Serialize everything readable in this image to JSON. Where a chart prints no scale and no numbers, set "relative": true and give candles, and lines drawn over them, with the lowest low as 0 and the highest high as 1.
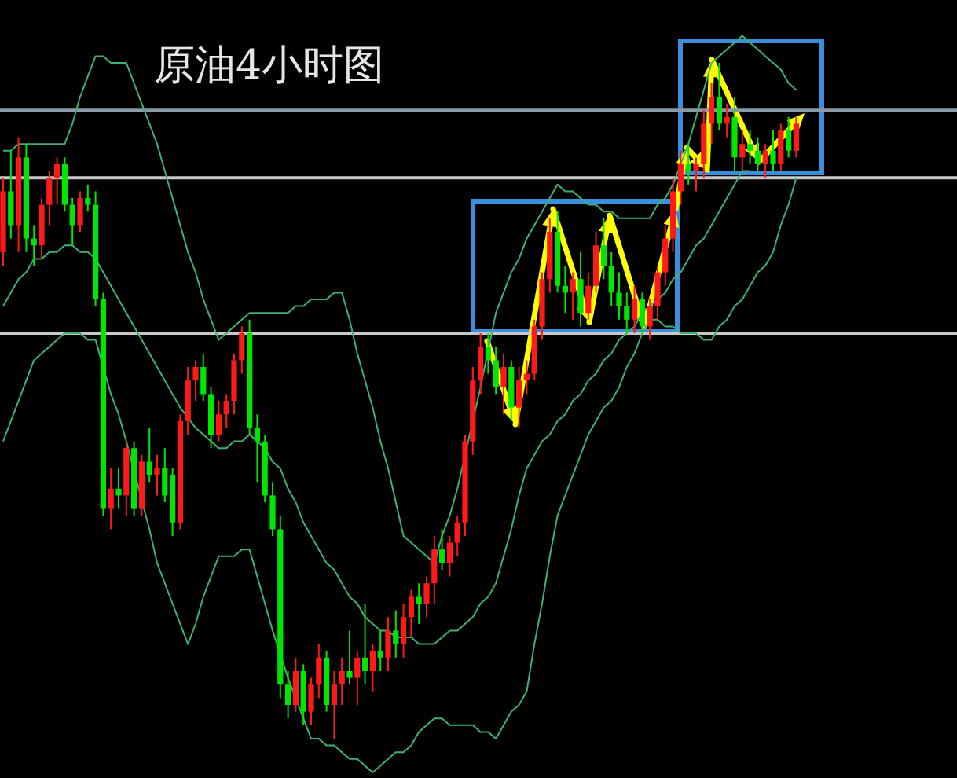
{
  "chart_data": {
    "type": "candlestick",
    "title": "原油4小时图",
    "relative": true,
    "categories": [
      null,
      null,
      null,
      null,
      null,
      null,
      null,
      null,
      null,
      null,
      null,
      null,
      null,
      null,
      null,
      null,
      null,
      null,
      null,
      null,
      null,
      null,
      null,
      null,
      null,
      null,
      null,
      null,
      null,
      null,
      null,
      null,
      null,
      null,
      null,
      null,
      null,
      null,
      null,
      null,
      null,
      null,
      null,
      null,
      null,
      null,
      null,
      null,
      null,
      null,
      null,
      null,
      null,
      null,
      null,
      null,
      null,
      null,
      null,
      null,
      null,
      null,
      null,
      null,
      null,
      null,
      null,
      null,
      null,
      null,
      null,
      null,
      null,
      null,
      null,
      null,
      null,
      null,
      null,
      null,
      null,
      null,
      null,
      null,
      null,
      null,
      null,
      null,
      null,
      null,
      null,
      null,
      null,
      null,
      null,
      null,
      null,
      null,
      null,
      null,
      null,
      null,
      null,
      null
    ],
    "ohlc": [
      [
        0.72,
        0.83,
        0.7,
        0.81
      ],
      [
        0.81,
        0.87,
        0.74,
        0.76
      ],
      [
        0.76,
        0.89,
        0.72,
        0.86
      ],
      [
        0.86,
        0.88,
        0.72,
        0.74
      ],
      [
        0.74,
        0.76,
        0.7,
        0.73
      ],
      [
        0.73,
        0.8,
        0.71,
        0.79
      ],
      [
        0.79,
        0.84,
        0.76,
        0.83
      ],
      [
        0.83,
        0.86,
        0.79,
        0.85
      ],
      [
        0.85,
        0.86,
        0.78,
        0.79
      ],
      [
        0.79,
        0.8,
        0.73,
        0.76
      ],
      [
        0.76,
        0.81,
        0.75,
        0.8
      ],
      [
        0.8,
        0.82,
        0.78,
        0.79
      ],
      [
        0.79,
        0.81,
        0.64,
        0.65
      ],
      [
        0.65,
        0.66,
        0.33,
        0.34
      ],
      [
        0.34,
        0.4,
        0.31,
        0.37
      ],
      [
        0.37,
        0.4,
        0.34,
        0.36
      ],
      [
        0.36,
        0.44,
        0.33,
        0.43
      ],
      [
        0.43,
        0.44,
        0.33,
        0.34
      ],
      [
        0.34,
        0.42,
        0.33,
        0.41
      ],
      [
        0.41,
        0.46,
        0.38,
        0.39
      ],
      [
        0.39,
        0.42,
        0.36,
        0.4
      ],
      [
        0.4,
        0.43,
        0.35,
        0.36
      ],
      [
        0.39,
        0.4,
        0.3,
        0.32
      ],
      [
        0.32,
        0.48,
        0.31,
        0.47
      ],
      [
        0.47,
        0.55,
        0.45,
        0.53
      ],
      [
        0.53,
        0.56,
        0.5,
        0.55
      ],
      [
        0.55,
        0.57,
        0.5,
        0.51
      ],
      [
        0.51,
        0.52,
        0.43,
        0.45
      ],
      [
        0.45,
        0.5,
        0.44,
        0.48
      ],
      [
        0.48,
        0.51,
        0.46,
        0.5
      ],
      [
        0.5,
        0.57,
        0.48,
        0.56
      ],
      [
        0.56,
        0.61,
        0.54,
        0.6
      ],
      [
        0.6,
        0.62,
        0.45,
        0.46
      ],
      [
        0.46,
        0.48,
        0.38,
        0.44
      ],
      [
        0.44,
        0.45,
        0.35,
        0.36
      ],
      [
        0.36,
        0.38,
        0.3,
        0.31
      ],
      [
        0.31,
        0.33,
        0.06,
        0.08
      ],
      [
        0.08,
        0.1,
        0.03,
        0.05
      ],
      [
        0.05,
        0.12,
        0.04,
        0.1
      ],
      [
        0.1,
        0.11,
        0.02,
        0.04
      ],
      [
        0.04,
        0.09,
        0.02,
        0.08
      ],
      [
        0.08,
        0.14,
        0.06,
        0.12
      ],
      [
        0.12,
        0.13,
        0.04,
        0.05
      ],
      [
        0.05,
        0.1,
        0.0,
        0.08
      ],
      [
        0.08,
        0.12,
        0.05,
        0.1
      ],
      [
        0.1,
        0.16,
        0.08,
        0.09
      ],
      [
        0.09,
        0.13,
        0.05,
        0.12
      ],
      [
        0.12,
        0.2,
        0.08,
        0.1
      ],
      [
        0.1,
        0.14,
        0.07,
        0.13
      ],
      [
        0.13,
        0.16,
        0.1,
        0.12
      ],
      [
        0.12,
        0.18,
        0.1,
        0.16
      ],
      [
        0.16,
        0.19,
        0.12,
        0.14
      ],
      [
        0.14,
        0.2,
        0.12,
        0.18
      ],
      [
        0.18,
        0.22,
        0.15,
        0.21
      ],
      [
        0.21,
        0.23,
        0.17,
        0.2
      ],
      [
        0.2,
        0.24,
        0.18,
        0.23
      ],
      [
        0.23,
        0.3,
        0.2,
        0.28
      ],
      [
        0.28,
        0.31,
        0.25,
        0.26
      ],
      [
        0.26,
        0.3,
        0.24,
        0.29
      ],
      [
        0.29,
        0.33,
        0.27,
        0.32
      ],
      [
        0.32,
        0.45,
        0.3,
        0.44
      ],
      [
        0.44,
        0.55,
        0.42,
        0.53
      ],
      [
        0.53,
        0.6,
        0.51,
        0.58
      ],
      [
        0.58,
        0.6,
        0.54,
        0.56
      ],
      [
        0.56,
        0.58,
        0.51,
        0.52
      ],
      [
        0.52,
        0.57,
        0.48,
        0.55
      ],
      [
        0.55,
        0.56,
        0.47,
        0.49
      ],
      [
        0.49,
        0.55,
        0.46,
        0.53
      ],
      [
        0.53,
        0.56,
        0.51,
        0.54
      ],
      [
        0.54,
        0.62,
        0.53,
        0.61
      ],
      [
        0.61,
        0.69,
        0.59,
        0.68
      ],
      [
        0.68,
        0.77,
        0.66,
        0.75
      ],
      [
        0.75,
        0.78,
        0.66,
        0.67
      ],
      [
        0.67,
        0.7,
        0.63,
        0.66
      ],
      [
        0.66,
        0.69,
        0.62,
        0.68
      ],
      [
        0.68,
        0.72,
        0.61,
        0.63
      ],
      [
        0.63,
        0.69,
        0.62,
        0.67
      ],
      [
        0.67,
        0.75,
        0.66,
        0.73
      ],
      [
        0.73,
        0.77,
        0.68,
        0.7
      ],
      [
        0.7,
        0.72,
        0.64,
        0.66
      ],
      [
        0.66,
        0.69,
        0.62,
        0.64
      ],
      [
        0.64,
        0.66,
        0.6,
        0.62
      ],
      [
        0.62,
        0.67,
        0.6,
        0.65
      ],
      [
        0.65,
        0.66,
        0.6,
        0.61
      ],
      [
        0.61,
        0.65,
        0.59,
        0.64
      ],
      [
        0.64,
        0.7,
        0.62,
        0.69
      ],
      [
        0.69,
        0.76,
        0.67,
        0.74
      ],
      [
        0.74,
        0.83,
        0.72,
        0.81
      ],
      [
        0.81,
        0.87,
        0.79,
        0.85
      ],
      [
        0.85,
        0.88,
        0.82,
        0.84
      ],
      [
        0.84,
        0.86,
        0.81,
        0.85
      ],
      [
        0.85,
        0.93,
        0.83,
        0.91
      ],
      [
        0.91,
        0.97,
        0.88,
        0.95
      ],
      [
        0.95,
        1.0,
        0.9,
        0.91
      ],
      [
        0.91,
        0.94,
        0.89,
        0.92
      ],
      [
        0.92,
        0.95,
        0.84,
        0.86
      ],
      [
        0.86,
        0.9,
        0.84,
        0.88
      ],
      [
        0.88,
        0.9,
        0.85,
        0.87
      ],
      [
        0.87,
        0.89,
        0.84,
        0.85
      ],
      [
        0.85,
        0.88,
        0.83,
        0.87
      ],
      [
        0.87,
        0.9,
        0.84,
        0.85
      ],
      [
        0.85,
        0.91,
        0.84,
        0.9
      ],
      [
        0.9,
        0.92,
        0.86,
        0.87
      ],
      [
        0.87,
        0.92,
        0.86,
        0.91
      ]
    ],
    "series": [
      {
        "type": "line",
        "color": "#3cb371",
        "values": [
          0.87,
          0.87,
          0.88,
          0.88,
          0.88,
          0.88,
          0.88,
          0.88,
          0.88,
          0.91,
          0.95,
          0.98,
          1.01,
          1.01,
          1.0,
          1.0,
          1.0,
          0.97,
          0.94,
          0.91,
          0.88,
          0.84,
          0.8,
          0.76,
          0.72,
          0.69,
          0.65,
          0.62,
          0.59,
          0.6,
          0.61,
          0.62,
          0.63,
          0.63,
          0.63,
          0.63,
          0.63,
          0.63,
          0.64,
          0.64,
          0.65,
          0.65,
          0.65,
          0.66,
          0.66,
          0.62,
          0.57,
          0.53,
          0.49,
          0.44,
          0.4,
          0.35,
          0.3,
          0.29,
          0.28,
          0.27,
          0.26,
          0.3,
          0.33,
          0.37,
          null,
          null,
          0.52,
          null,
          0.63,
          0.66,
          0.69,
          0.71,
          0.74,
          0.76,
          0.78,
          0.8,
          0.82,
          0.81,
          0.81,
          0.8,
          0.79,
          0.79,
          0.78,
          0.78,
          0.77,
          0.77,
          0.77,
          0.77,
          0.77,
          0.79,
          0.8,
          0.82,
          null,
          0.88,
          0.92,
          0.96,
          1.0,
          1.01,
          1.02,
          1.03,
          1.04,
          1.03,
          1.02,
          1.01,
          1.0,
          0.99,
          0.97,
          0.96
        ]
      },
      {
        "type": "line",
        "color": "#3cb371",
        "values": [
          0.64,
          0.66,
          0.68,
          0.69,
          0.71,
          0.71,
          0.72,
          0.72,
          0.73,
          0.73,
          0.72,
          0.72,
          0.71,
          0.69,
          0.67,
          0.65,
          0.63,
          0.61,
          0.59,
          0.57,
          0.55,
          0.53,
          0.51,
          0.49,
          null,
          0.46,
          0.45,
          0.44,
          0.43,
          0.43,
          0.44,
          0.44,
          0.45,
          0.44,
          0.43,
          0.41,
          0.4,
          0.37,
          0.35,
          0.32,
          0.3,
          0.28,
          0.26,
          0.25,
          0.23,
          0.21,
          0.2,
          0.18,
          0.17,
          0.16,
          0.16,
          0.15,
          0.15,
          0.15,
          0.14,
          0.14,
          0.14,
          0.15,
          0.16,
          0.16,
          0.17,
          0.18,
          0.2,
          0.21,
          0.23,
          0.27,
          0.31,
          0.36,
          0.4,
          0.42,
          0.44,
          0.45,
          0.47,
          0.48,
          0.5,
          0.51,
          0.53,
          0.54,
          0.56,
          0.57,
          0.59,
          0.6,
          0.61,
          0.63,
          0.64,
          0.65,
          0.66,
          0.68,
          0.69,
          0.71,
          0.73,
          0.74,
          0.76,
          0.78,
          0.8,
          0.82,
          0.84,
          0.84,
          null,
          null,
          null,
          null,
          null,
          null
        ]
      },
      {
        "type": "line",
        "color": "#3cb371",
        "values": [
          0.44,
          0.47,
          0.5,
          0.53,
          0.56,
          0.57,
          0.58,
          0.59,
          0.6,
          0.6,
          0.6,
          0.59,
          0.59,
          null,
          0.51,
          0.48,
          0.44,
          null,
          null,
          0.31,
          0.26,
          0.23,
          0.2,
          0.17,
          0.14,
          0.17,
          0.21,
          0.24,
          0.27,
          0.27,
          0.27,
          0.28,
          0.28,
          0.24,
          0.2,
          0.16,
          null,
          0.09,
          null,
          0.03,
          0.0,
          0.0,
          -0.01,
          -0.01,
          -0.02,
          -0.03,
          -0.03,
          -0.04,
          -0.05,
          -0.04,
          -0.03,
          -0.02,
          -0.02,
          -0.01,
          0.01,
          0.02,
          0.03,
          0.03,
          0.02,
          0.02,
          0.02,
          0.02,
          0.01,
          0.01,
          0.0,
          0.02,
          0.04,
          0.05,
          0.07,
          0.14,
          0.2,
          0.27,
          0.33,
          0.36,
          0.39,
          0.42,
          0.45,
          0.47,
          0.49,
          0.5,
          0.52,
          0.55,
          0.57,
          0.6,
          0.62,
          0.62,
          0.61,
          0.61,
          0.6,
          0.6,
          0.6,
          0.59,
          0.59,
          0.61,
          0.62,
          0.64,
          0.65,
          0.67,
          0.69,
          0.7,
          0.72,
          0.76,
          0.79,
          0.83
        ]
      }
    ],
    "ref_lines": [
      {
        "axis": "y",
        "value": 0.93,
        "color": "#8a9aa8"
      },
      {
        "axis": "y",
        "value": 0.6,
        "color": "#c8c8c8"
      },
      {
        "axis": "y",
        "value": 0.83,
        "color": "#c8c8c8"
      }
    ]
  }
}
